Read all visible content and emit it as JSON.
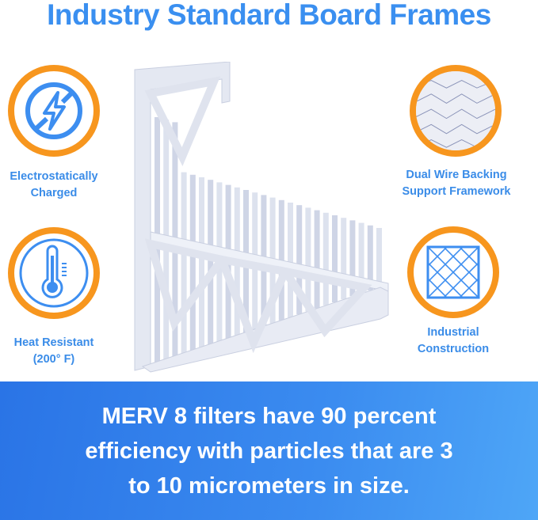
{
  "title": "Industry Standard Board Frames",
  "features": [
    {
      "label_line1": "Electrostatically",
      "label_line2": "Charged",
      "icon": "lightning-slash-icon"
    },
    {
      "label_line1": "Heat Resistant",
      "label_line2": "(200° F)",
      "icon": "thermometer-icon"
    },
    {
      "label_line1": "Dual Wire Backing",
      "label_line2": "Support Framework",
      "icon": "wire-mesh-icon"
    },
    {
      "label_line1": "Industrial",
      "label_line2": "Construction",
      "icon": "grid-square-icon"
    }
  ],
  "banner": {
    "line1": "MERV 8 filters have 90 percent",
    "line2": "efficiency with particles that are 3",
    "line3": "to 10 micrometers in size."
  },
  "colors": {
    "accent_blue": "#3a8ff0",
    "ring_orange": "#f7961e",
    "banner_blue": "#2a74e6"
  }
}
